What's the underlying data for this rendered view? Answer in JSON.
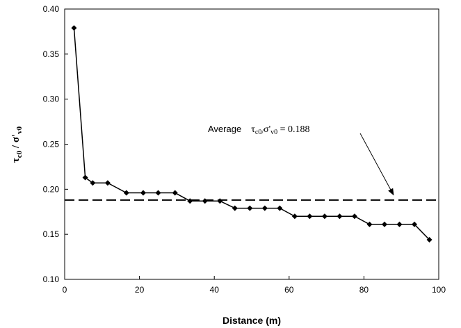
{
  "chart_data": {
    "type": "line",
    "xlabel": "Distance (m)",
    "ylabel": {
      "symbol": "τ",
      "sub1": "c0",
      "slash": " / ",
      "symbol2": "σ'",
      "sub2": "v0"
    },
    "xlim": [
      0,
      100
    ],
    "ylim": [
      0.1,
      0.4
    ],
    "x_ticks": [
      "0",
      "20",
      "40",
      "60",
      "80",
      "100"
    ],
    "y_ticks": [
      "0.10",
      "0.15",
      "0.20",
      "0.25",
      "0.30",
      "0.35",
      "0.40"
    ],
    "grid": false,
    "series": [
      {
        "marker": "diamond",
        "color": "#000000",
        "x": [
          2.5,
          5.5,
          7.5,
          11.5,
          16.5,
          21,
          25,
          29.5,
          33.5,
          37.5,
          41.5,
          45.5,
          49.5,
          53.5,
          57.5,
          61.5,
          65.5,
          69.5,
          73.5,
          77.5,
          81.5,
          85.5,
          89.5,
          93.5,
          97.5
        ],
        "y": [
          0.379,
          0.213,
          0.207,
          0.207,
          0.196,
          0.196,
          0.196,
          0.196,
          0.187,
          0.187,
          0.187,
          0.179,
          0.179,
          0.179,
          0.179,
          0.17,
          0.17,
          0.17,
          0.17,
          0.17,
          0.161,
          0.161,
          0.161,
          0.161,
          0.144
        ]
      }
    ],
    "reference_line": {
      "y": 0.188,
      "style": "dashed",
      "color": "#000000"
    },
    "annotation": {
      "prefix": "Average",
      "tau": "τ",
      "tau_sub": "c0/",
      "sigma": "σ'",
      "sigma_sub": "v0",
      "value_text": " = 0.188",
      "arrow_from": [
        79,
        0.262
      ],
      "arrow_to": [
        88,
        0.193
      ]
    }
  }
}
